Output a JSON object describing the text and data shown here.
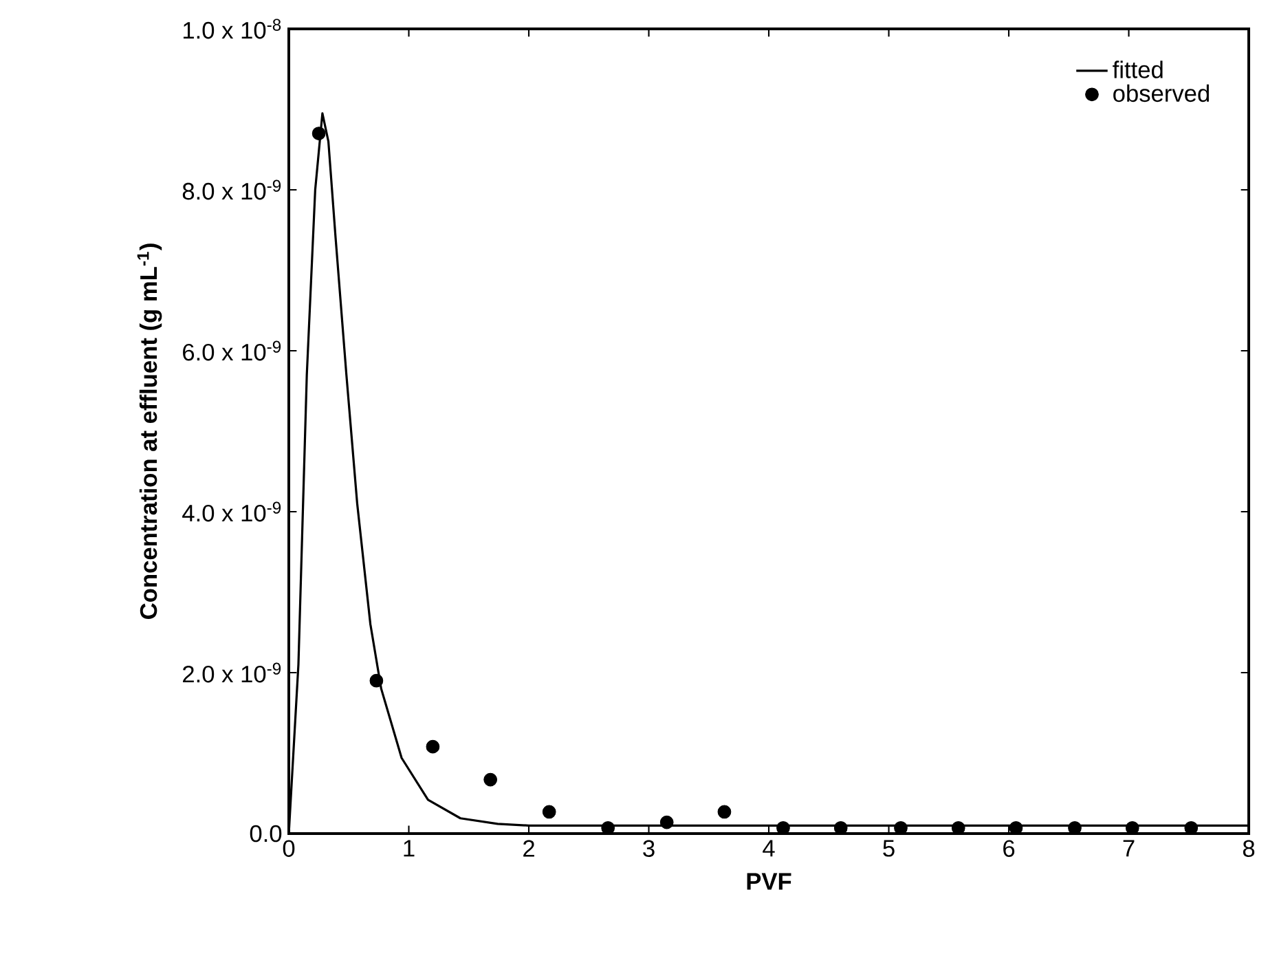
{
  "chart_data": {
    "type": "line",
    "xlabel": "PVF",
    "ylabel": "Concentration at effluent (g mL$^{-1}$)",
    "xlim": [
      0,
      8
    ],
    "xticks": [
      0,
      1,
      2,
      3,
      4,
      5,
      6,
      7,
      8
    ],
    "ylim": [
      0,
      1e-08
    ],
    "yticks": [
      {
        "value": 0,
        "label": "0.0"
      },
      {
        "value": 2e-09,
        "label": "2.0 x 10$^{-9}$"
      },
      {
        "value": 4e-09,
        "label": "4.0 x 10$^{-9}$"
      },
      {
        "value": 6e-09,
        "label": "6.0 x 10$^{-9}$"
      },
      {
        "value": 8e-09,
        "label": "8.0 x 10$^{-9}$"
      },
      {
        "value": 1e-08,
        "label": "1.0 x 10$^{-8}$"
      }
    ],
    "legend": "top right",
    "series": [
      {
        "name": "fitted",
        "color": "#000000",
        "marker": "none",
        "line_style": "solid",
        "x": [
          0,
          0.08,
          0.15,
          0.22,
          0.28,
          0.33,
          0.39,
          0.48,
          0.57,
          0.68,
          0.77,
          0.94,
          1.16,
          1.43,
          1.74,
          2.0,
          3.0,
          4.0,
          5.0,
          6.0,
          7.0,
          8.0
        ],
        "values": [
          0,
          2.1e-09,
          5.7e-09,
          8e-09,
          8.95e-09,
          8.6e-09,
          7.4e-09,
          5.7e-09,
          4.1e-09,
          2.6e-09,
          1.8e-09,
          9.4e-10,
          4.2e-10,
          1.9e-10,
          1.2e-10,
          1e-10,
          1e-10,
          1e-10,
          1e-10,
          1e-10,
          1e-10,
          1e-10
        ]
      },
      {
        "name": "observed",
        "type": "scatter",
        "color": "#000000",
        "marker": "circle",
        "x": [
          0.25,
          0.73,
          1.2,
          1.68,
          2.17,
          2.66,
          3.15,
          3.63,
          4.12,
          4.6,
          5.1,
          5.58,
          6.06,
          6.55,
          7.03,
          7.52
        ],
        "values": [
          8.7e-09,
          1.9e-09,
          1.08e-09,
          6.7e-10,
          2.7e-10,
          7e-11,
          1.4e-10,
          2.7e-10,
          7e-11,
          7e-11,
          7e-11,
          7e-11,
          7e-11,
          7e-11,
          7e-11,
          7e-11
        ]
      }
    ]
  }
}
